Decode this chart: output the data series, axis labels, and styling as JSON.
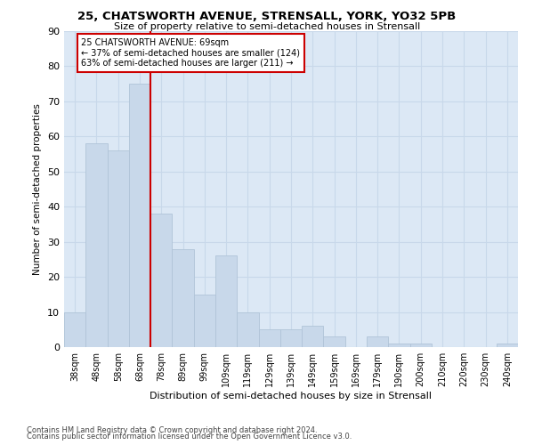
{
  "title1": "25, CHATSWORTH AVENUE, STRENSALL, YORK, YO32 5PB",
  "title2": "Size of property relative to semi-detached houses in Strensall",
  "xlabel": "Distribution of semi-detached houses by size in Strensall",
  "ylabel": "Number of semi-detached properties",
  "footnote1": "Contains HM Land Registry data © Crown copyright and database right 2024.",
  "footnote2": "Contains public sector information licensed under the Open Government Licence v3.0.",
  "bar_labels": [
    "38sqm",
    "48sqm",
    "58sqm",
    "68sqm",
    "78sqm",
    "89sqm",
    "99sqm",
    "109sqm",
    "119sqm",
    "129sqm",
    "139sqm",
    "149sqm",
    "159sqm",
    "169sqm",
    "179sqm",
    "190sqm",
    "200sqm",
    "210sqm",
    "220sqm",
    "230sqm",
    "240sqm"
  ],
  "values": [
    10,
    58,
    56,
    75,
    38,
    28,
    15,
    26,
    10,
    5,
    5,
    6,
    3,
    0,
    3,
    1,
    1,
    0,
    0,
    0,
    1
  ],
  "bar_color": "#c8d8ea",
  "bar_edge_color": "#b0c4d8",
  "grid_color": "#c8d8ea",
  "bg_color": "#dce8f5",
  "red_line_index": 3,
  "annotation_title": "25 CHATSWORTH AVENUE: 69sqm",
  "annotation_line1": "← 37% of semi-detached houses are smaller (124)",
  "annotation_line2": "63% of semi-detached houses are larger (211) →",
  "ylim": [
    0,
    90
  ],
  "yticks": [
    0,
    10,
    20,
    30,
    40,
    50,
    60,
    70,
    80,
    90
  ]
}
